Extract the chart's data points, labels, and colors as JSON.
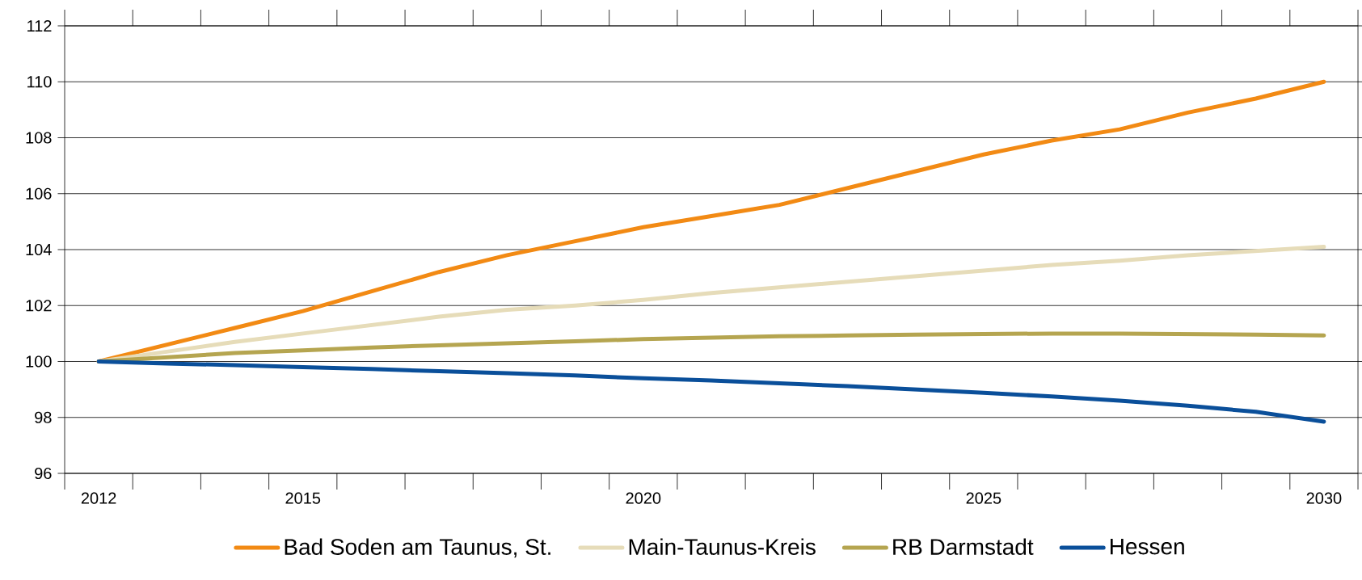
{
  "chart_data": {
    "type": "line",
    "categories": [
      "2012",
      null,
      null,
      "2015",
      null,
      null,
      null,
      null,
      "2020",
      null,
      null,
      null,
      null,
      "2025",
      null,
      null,
      null,
      null,
      "2030"
    ],
    "series": [
      {
        "name": "Bad Soden am Taunus, St.",
        "color": "#f28a14",
        "values": [
          100.0,
          100.6,
          101.2,
          101.8,
          102.5,
          103.2,
          103.8,
          104.3,
          104.8,
          105.2,
          105.6,
          106.2,
          106.8,
          107.4,
          107.9,
          108.3,
          108.9,
          109.4,
          110.0
        ]
      },
      {
        "name": "Main-Taunus-Kreis",
        "color": "#e6dcb9",
        "values": [
          100.0,
          100.35,
          100.7,
          101.0,
          101.3,
          101.6,
          101.85,
          102.0,
          102.2,
          102.45,
          102.65,
          102.85,
          103.05,
          103.25,
          103.45,
          103.6,
          103.8,
          103.95,
          104.1
        ]
      },
      {
        "name": "RB Darmstadt",
        "color": "#b5a550",
        "values": [
          100.0,
          100.15,
          100.3,
          100.4,
          100.5,
          100.58,
          100.65,
          100.72,
          100.8,
          100.85,
          100.9,
          100.93,
          100.96,
          100.98,
          101.0,
          101.0,
          100.98,
          100.96,
          100.93
        ]
      },
      {
        "name": "Hessen",
        "color": "#0a4f9a",
        "values": [
          100.0,
          99.93,
          99.87,
          99.8,
          99.73,
          99.65,
          99.58,
          99.5,
          99.4,
          99.32,
          99.22,
          99.12,
          99.0,
          98.88,
          98.75,
          98.6,
          98.42,
          98.2,
          97.85
        ]
      }
    ],
    "ylim": [
      96,
      112
    ],
    "yticks": [
      96,
      98,
      100,
      102,
      104,
      106,
      108,
      110,
      112
    ],
    "grid": "y",
    "legend": "bottom",
    "marker": "none",
    "line_style": "solid"
  }
}
